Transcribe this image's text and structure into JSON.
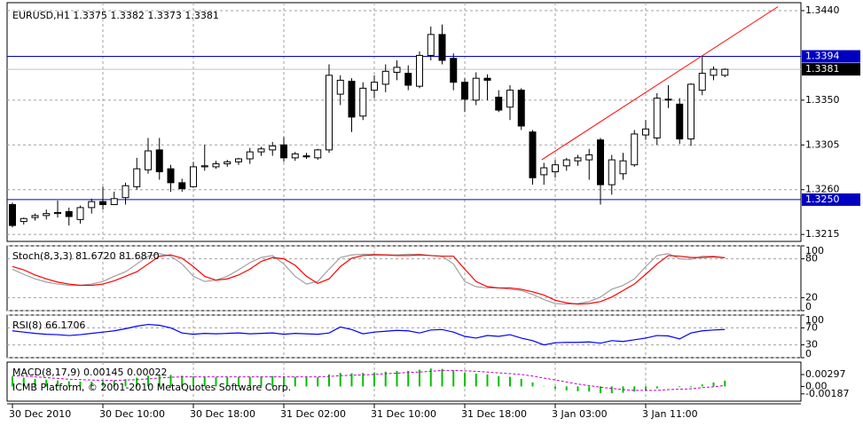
{
  "chart_data": [
    {
      "type": "candlestick",
      "title": "EURUSD,H1  1.3375 1.3382 1.3373 1.3381",
      "categories": [
        "30 Dec 2010",
        null,
        null,
        null,
        null,
        null,
        null,
        null,
        "30 Dec 10:00",
        null,
        null,
        null,
        null,
        null,
        null,
        null,
        "30 Dec 18:00",
        null,
        null,
        null,
        null,
        null,
        null,
        null,
        "31 Dec 02:00",
        null,
        null,
        null,
        null,
        null,
        null,
        null,
        "31 Dec 10:00",
        null,
        null,
        null,
        null,
        null,
        null,
        null,
        "31 Dec 18:00",
        null,
        null,
        null,
        null,
        null,
        null,
        null,
        "3 Jan 03:00",
        null,
        null,
        null,
        null,
        null,
        null,
        null,
        "3 Jan 11:00",
        null,
        null,
        null,
        null,
        null,
        null,
        null
      ],
      "open": [
        1.3245,
        1.3228,
        1.3232,
        1.3234,
        1.3236,
        1.3238,
        1.323,
        1.3242,
        1.3248,
        1.3245,
        1.3252,
        1.3263,
        1.328,
        1.33,
        1.3281,
        1.3267,
        1.3263,
        1.3283,
        1.3283,
        1.3286,
        1.3288,
        1.3291,
        1.3298,
        1.33,
        1.3305,
        1.3292,
        1.3294,
        1.3292,
        1.33,
        1.3356,
        1.3369,
        1.3334,
        1.336,
        1.3366,
        1.3378,
        1.3377,
        1.3364,
        1.3395,
        1.3416,
        1.3392,
        1.3368,
        1.335,
        1.3372,
        1.3353,
        1.3343,
        1.336,
        1.3318,
        1.3275,
        1.3278,
        1.3284,
        1.3289,
        1.329,
        1.331,
        1.3265,
        1.3276,
        1.3285,
        1.3315,
        1.3312,
        1.335,
        1.3346,
        1.3311,
        1.336,
        1.3375,
        1.3375
      ],
      "high": [
        1.3247,
        1.3232,
        1.3236,
        1.324,
        1.3249,
        1.3242,
        1.3244,
        1.3251,
        1.3263,
        1.3258,
        1.3267,
        1.3292,
        1.3312,
        1.3312,
        1.3285,
        1.3271,
        1.3288,
        1.3305,
        1.3289,
        1.329,
        1.3292,
        1.3302,
        1.3303,
        1.3308,
        1.3313,
        1.3298,
        1.3297,
        1.3301,
        1.3386,
        1.3375,
        1.3372,
        1.3368,
        1.3375,
        1.3386,
        1.339,
        1.3385,
        1.3399,
        1.3424,
        1.3426,
        1.3397,
        1.3372,
        1.3378,
        1.3376,
        1.336,
        1.3365,
        1.3362,
        1.332,
        1.3287,
        1.329,
        1.3292,
        1.3295,
        1.3301,
        1.3312,
        1.3295,
        1.3297,
        1.332,
        1.333,
        1.3357,
        1.3365,
        1.3352,
        1.3367,
        1.3394,
        1.3384,
        1.3382
      ],
      "low": [
        1.3222,
        1.3225,
        1.3229,
        1.323,
        1.3232,
        1.3224,
        1.3226,
        1.3236,
        1.324,
        1.3245,
        1.3245,
        1.326,
        1.3276,
        1.327,
        1.3258,
        1.3258,
        1.3262,
        1.3279,
        1.3281,
        1.3283,
        1.3285,
        1.3286,
        1.3294,
        1.3294,
        1.3288,
        1.3289,
        1.3291,
        1.329,
        1.3297,
        1.3345,
        1.3318,
        1.333,
        1.3352,
        1.3358,
        1.337,
        1.336,
        1.3362,
        1.339,
        1.3386,
        1.336,
        1.3338,
        1.3345,
        1.335,
        1.3338,
        1.333,
        1.332,
        1.3265,
        1.3265,
        1.3272,
        1.3279,
        1.3284,
        1.327,
        1.3245,
        1.3255,
        1.327,
        1.3283,
        1.331,
        1.3305,
        1.3342,
        1.3306,
        1.3304,
        1.3355,
        1.337,
        1.3373
      ],
      "close": [
        1.3224,
        1.3231,
        1.3234,
        1.3236,
        1.3237,
        1.3233,
        1.3242,
        1.3248,
        1.3245,
        1.3251,
        1.3264,
        1.3281,
        1.3299,
        1.3278,
        1.3267,
        1.3261,
        1.3283,
        1.3284,
        1.3286,
        1.3288,
        1.3291,
        1.3298,
        1.3301,
        1.3304,
        1.3292,
        1.3296,
        1.3293,
        1.33,
        1.3375,
        1.337,
        1.3333,
        1.3362,
        1.3368,
        1.3379,
        1.3383,
        1.3365,
        1.3395,
        1.3416,
        1.339,
        1.3368,
        1.3351,
        1.3372,
        1.337,
        1.334,
        1.336,
        1.3324,
        1.3272,
        1.3282,
        1.3285,
        1.329,
        1.3292,
        1.3295,
        1.3265,
        1.329,
        1.3289,
        1.3316,
        1.3321,
        1.3352,
        1.3351,
        1.3311,
        1.3366,
        1.3377,
        1.3381,
        1.3381
      ],
      "up_color": "#ffffff",
      "down_color": "#000000",
      "ylim": [
        1.3208,
        1.3448
      ],
      "yticks": [
        1.3215,
        {
          "value": 1.326,
          "label": "1.3260"
        },
        1.3305,
        {
          "value": 1.335,
          "label": "1.3350"
        },
        {
          "value": 1.344,
          "label": "1.3440"
        }
      ],
      "grid": true,
      "hlines": [
        1.3394,
        {
          "value": 1.325,
          "label": "1.3250"
        }
      ],
      "hline_color": "#0000c0",
      "last_price": 1.3381,
      "trendline": {
        "x": [
          46.8,
          67.7
        ],
        "y": [
          1.329,
          1.3444
        ],
        "color": "#ff0000"
      }
    },
    {
      "type": "line",
      "title": "Stoch(8,3,3) 81.6720 81.6870",
      "series": [
        {
          "color": "#a0a0a0",
          "values": [
            64,
            56,
            49,
            44,
            41,
            39,
            39,
            41,
            45,
            53,
            60,
            72,
            84,
            88,
            84,
            72,
            53,
            45,
            47,
            53,
            63,
            74,
            82,
            85,
            72,
            53,
            41,
            45,
            64,
            82,
            86,
            87,
            87,
            86,
            86,
            87,
            87,
            85,
            84,
            72,
            45,
            37,
            35,
            35,
            33,
            31,
            25,
            17,
            11,
            10,
            11,
            14,
            21,
            33,
            39,
            49,
            68,
            85,
            88,
            80,
            79,
            84,
            84,
            81.672
          ]
        },
        {
          "color": "#ff0000",
          "values": [
            68,
            63,
            55,
            49,
            44,
            41,
            39,
            39,
            41,
            46,
            53,
            60,
            72,
            84,
            86,
            81,
            68,
            53,
            47,
            49,
            55,
            64,
            76,
            82,
            80,
            70,
            53,
            42,
            49,
            68,
            81,
            85,
            86,
            86,
            85,
            85,
            86,
            85,
            84,
            84,
            64,
            45,
            37,
            35,
            35,
            33,
            29,
            24,
            16,
            12,
            10,
            11,
            14,
            21,
            31,
            41,
            56,
            72,
            85,
            84,
            82,
            82,
            83,
            81.687
          ]
        }
      ],
      "ylim": [
        0,
        100
      ],
      "yticks": [
        0,
        20,
        80,
        100
      ],
      "grid": true
    },
    {
      "type": "line",
      "title": "RSI(8) 66.1706",
      "series": [
        {
          "color": "#0000ff",
          "values": [
            63,
            60,
            57,
            55,
            54,
            52,
            54,
            57,
            60,
            63,
            68,
            74,
            78,
            76,
            70,
            58,
            55,
            57,
            56,
            57,
            58,
            56,
            57,
            58,
            55,
            57,
            56,
            55,
            58,
            72,
            66,
            56,
            60,
            62,
            64,
            63,
            58,
            65,
            66,
            60,
            50,
            46,
            52,
            50,
            54,
            46,
            40,
            30,
            35,
            36,
            36,
            37,
            34,
            40,
            38,
            42,
            46,
            52,
            51,
            44,
            58,
            63,
            65,
            66.1706
          ]
        }
      ],
      "ylim": [
        0,
        100
      ],
      "yticks": [
        0,
        30,
        70,
        100
      ],
      "grid": true
    },
    {
      "type": "macd",
      "title": "MACD(8,17,9) 0.00145 0.00022",
      "annotation": "ICMB Platform, © 2001-2010 MetaQuotes Software Corp.",
      "series": [
        {
          "type": "bar",
          "color": "#00c000",
          "values": [
            0.0025,
            0.0022,
            0.0019,
            0.0017,
            0.0015,
            0.0013,
            0.0012,
            0.0012,
            0.0013,
            0.0015,
            0.0018,
            0.0022,
            0.0027,
            0.003,
            0.0029,
            0.0027,
            0.0025,
            0.0024,
            0.0023,
            0.0023,
            0.0023,
            0.0024,
            0.0025,
            0.0026,
            0.0025,
            0.0024,
            0.0023,
            0.0023,
            0.003,
            0.0034,
            0.0033,
            0.0034,
            0.0035,
            0.0037,
            0.0039,
            0.0039,
            0.0042,
            0.0045,
            0.0044,
            0.004,
            0.0035,
            0.0032,
            0.003,
            0.0026,
            0.0024,
            0.0019,
            0.001,
            0.0001,
            -0.0006,
            -0.001,
            -0.0012,
            -0.0013,
            -0.0017,
            -0.0017,
            -0.0016,
            -0.0013,
            -0.001,
            -0.0005,
            0,
            -0.0002,
            -0.0002,
            0.0005,
            0.001,
            0.00145
          ]
        },
        {
          "type": "line",
          "color": "#c000c0",
          "dashed": true,
          "values": [
            0.0027,
            0.0026,
            0.0024,
            0.0022,
            0.002,
            0.0018,
            0.0017,
            0.0016,
            0.0015,
            0.0015,
            0.0016,
            0.0017,
            0.0019,
            0.0021,
            0.0023,
            0.0024,
            0.0024,
            0.0024,
            0.0024,
            0.0024,
            0.0024,
            0.0024,
            0.0024,
            0.0024,
            0.0024,
            0.0024,
            0.0024,
            0.0024,
            0.0025,
            0.0027,
            0.0028,
            0.0029,
            0.003,
            0.0032,
            0.0033,
            0.0035,
            0.0036,
            0.0038,
            0.004,
            0.004,
            0.0039,
            0.0038,
            0.0036,
            0.0034,
            0.0032,
            0.003,
            0.0026,
            0.0021,
            0.0016,
            0.0011,
            0.0006,
            0.0002,
            -0.0002,
            -0.0005,
            -0.0008,
            -0.001,
            -0.001,
            -0.001,
            -0.0008,
            -0.0007,
            -0.0006,
            -0.0003,
            -0.0001,
            0.00022
          ]
        }
      ],
      "ylim": [
        -0.0037,
        0.0061
      ],
      "yticks": [
        -0.00187,
        {
          "value": 0,
          "label": "0.00"
        },
        0.00297
      ],
      "grid": false
    }
  ]
}
